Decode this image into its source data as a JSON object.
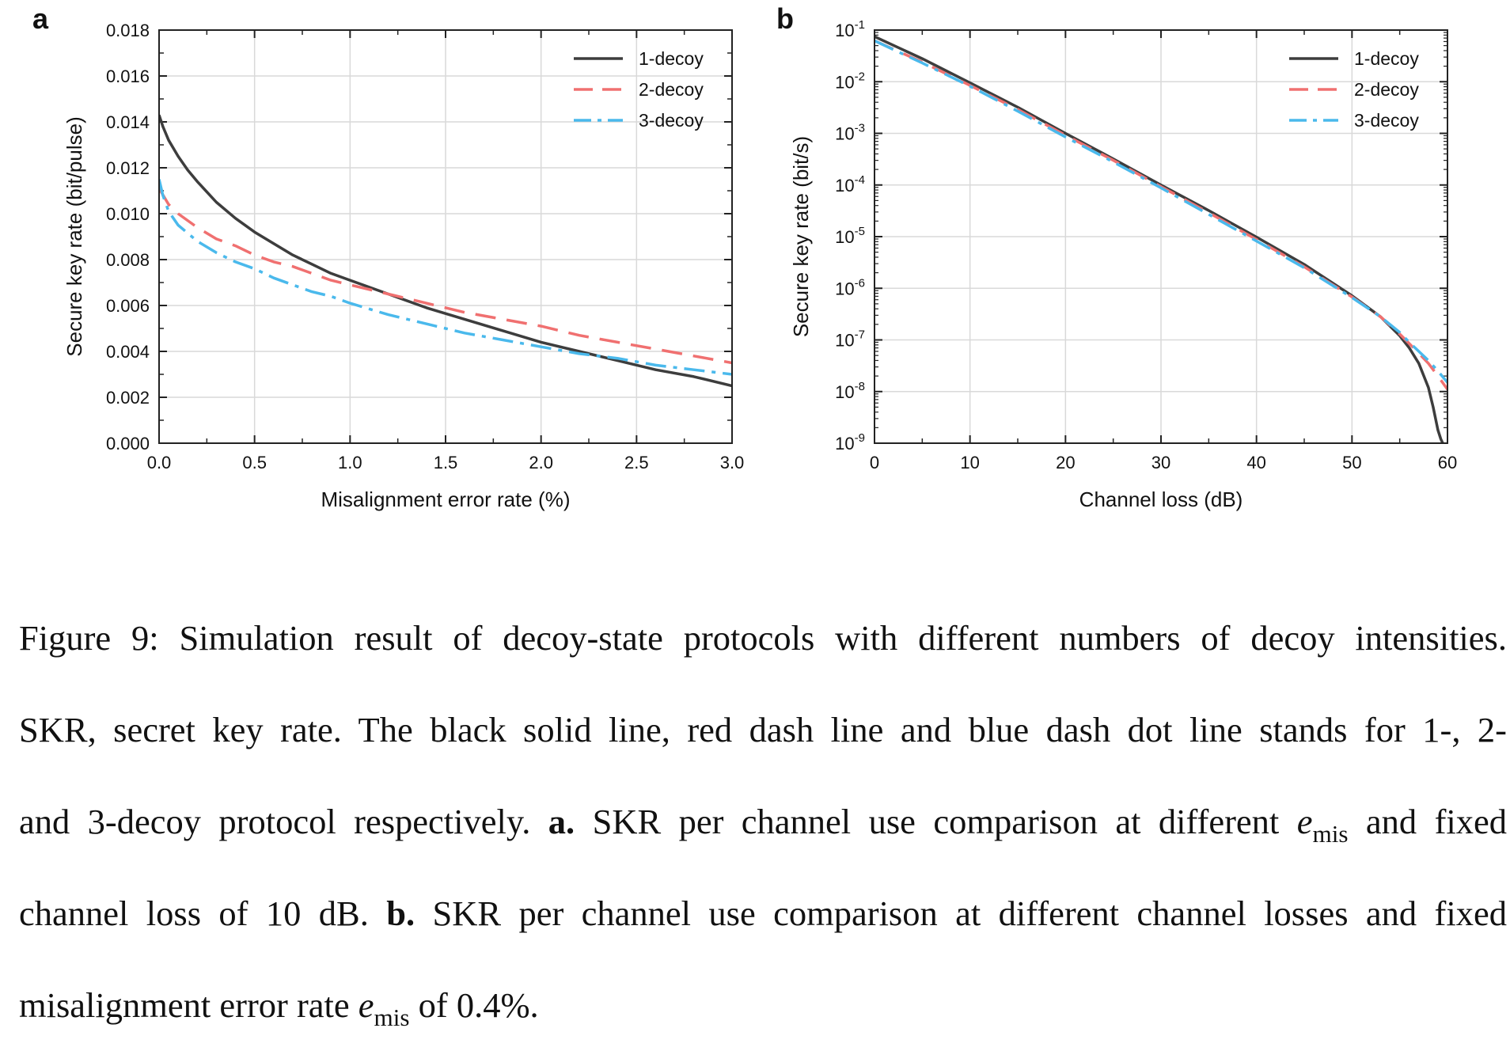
{
  "chart_data": [
    {
      "panel_label": "a",
      "type": "line",
      "xlabel": "Misalignment error rate (%)",
      "ylabel": "Secure key rate (bit/pulse)",
      "xlim": [
        0.0,
        3.0
      ],
      "ylim": [
        0.0,
        0.018
      ],
      "yscale": "linear",
      "x_ticks": [
        0.0,
        0.5,
        1.0,
        1.5,
        2.0,
        2.5,
        3.0
      ],
      "x_tick_labels": [
        "0.0",
        "0.5",
        "1.0",
        "1.5",
        "2.0",
        "2.5",
        "3.0"
      ],
      "y_ticks": [
        0.0,
        0.002,
        0.004,
        0.006,
        0.008,
        0.01,
        0.012,
        0.014,
        0.016,
        0.018
      ],
      "y_tick_labels": [
        "0.000",
        "0.002",
        "0.004",
        "0.006",
        "0.008",
        "0.010",
        "0.012",
        "0.014",
        "0.016",
        "0.018"
      ],
      "grid": true,
      "legend_position": "top-right",
      "series": [
        {
          "name": "1-decoy",
          "color": "#3d3d3d",
          "style": "solid",
          "x": [
            0.0,
            0.02,
            0.05,
            0.1,
            0.15,
            0.2,
            0.3,
            0.4,
            0.5,
            0.6,
            0.7,
            0.8,
            0.9,
            1.0,
            1.2,
            1.4,
            1.6,
            1.8,
            2.0,
            2.2,
            2.4,
            2.6,
            2.8,
            3.0
          ],
          "y": [
            0.0143,
            0.0138,
            0.0132,
            0.0125,
            0.0119,
            0.0114,
            0.0105,
            0.0098,
            0.0092,
            0.0087,
            0.0082,
            0.0078,
            0.0074,
            0.0071,
            0.0065,
            0.0059,
            0.0054,
            0.0049,
            0.0044,
            0.004,
            0.0036,
            0.0032,
            0.0029,
            0.0025
          ]
        },
        {
          "name": "2-decoy",
          "color": "#f07070",
          "style": "dash",
          "x": [
            0.0,
            0.05,
            0.1,
            0.2,
            0.3,
            0.4,
            0.5,
            0.6,
            0.7,
            0.8,
            0.9,
            1.0,
            1.2,
            1.4,
            1.6,
            1.8,
            2.0,
            2.2,
            2.4,
            2.6,
            2.8,
            3.0
          ],
          "y": [
            0.0111,
            0.0104,
            0.01,
            0.0094,
            0.0089,
            0.0086,
            0.0082,
            0.0079,
            0.0077,
            0.0074,
            0.0071,
            0.0069,
            0.0065,
            0.0061,
            0.0057,
            0.0054,
            0.0051,
            0.0047,
            0.0044,
            0.0041,
            0.0038,
            0.0035
          ]
        },
        {
          "name": "3-decoy",
          "color": "#4ab9ec",
          "style": "dashdot",
          "x": [
            0.0,
            0.02,
            0.05,
            0.1,
            0.2,
            0.3,
            0.4,
            0.5,
            0.6,
            0.7,
            0.8,
            0.9,
            1.0,
            1.2,
            1.4,
            1.6,
            1.8,
            2.0,
            2.2,
            2.4,
            2.6,
            2.8,
            3.0
          ],
          "y": [
            0.0115,
            0.0108,
            0.0101,
            0.0095,
            0.0088,
            0.0083,
            0.0079,
            0.0076,
            0.0072,
            0.0069,
            0.0066,
            0.0064,
            0.0061,
            0.0056,
            0.0052,
            0.0048,
            0.0045,
            0.0042,
            0.0039,
            0.0037,
            0.0034,
            0.0032,
            0.003
          ]
        }
      ]
    },
    {
      "panel_label": "b",
      "type": "line",
      "xlabel": "Channel loss (dB)",
      "ylabel": "Secure key rate (bit/s)",
      "xlim": [
        0,
        60
      ],
      "ylim": [
        1e-09,
        0.1
      ],
      "yscale": "log",
      "x_ticks": [
        0,
        10,
        20,
        30,
        40,
        50,
        60
      ],
      "x_tick_labels": [
        "0",
        "10",
        "20",
        "30",
        "40",
        "50",
        "60"
      ],
      "y_ticks": [
        1e-09,
        1e-08,
        1e-07,
        1e-06,
        1e-05,
        0.0001,
        0.001,
        0.01,
        0.1
      ],
      "y_tick_base": "10",
      "y_tick_exponents": [
        "-9",
        "-8",
        "-7",
        "-6",
        "-5",
        "-4",
        "-3",
        "-2",
        "-1"
      ],
      "grid": true,
      "legend_position": "top-right",
      "series": [
        {
          "name": "1-decoy",
          "color": "#3d3d3d",
          "style": "solid",
          "x": [
            0,
            5,
            10,
            15,
            20,
            25,
            30,
            35,
            40,
            45,
            50,
            53,
            55,
            56,
            57,
            58,
            58.5,
            59,
            59.3,
            59.5
          ],
          "y": [
            0.075,
            0.028,
            0.0095,
            0.0032,
            0.001,
            0.00032,
            0.0001,
            3.2e-05,
            9.8e-06,
            2.9e-06,
            7.2e-07,
            2.8e-07,
            1.2e-07,
            7e-08,
            3.5e-08,
            1.2e-08,
            5e-09,
            1.8e-09,
            1.2e-09,
            1e-09
          ]
        },
        {
          "name": "2-decoy",
          "color": "#f07070",
          "style": "dash",
          "x": [
            0,
            5,
            10,
            15,
            20,
            25,
            30,
            35,
            40,
            45,
            50,
            53,
            55,
            56,
            57,
            58,
            59,
            60
          ],
          "y": [
            0.062,
            0.024,
            0.0085,
            0.0029,
            0.00092,
            0.0003,
            9.3e-05,
            2.9e-05,
            8.8e-06,
            2.6e-06,
            6.8e-07,
            2.8e-07,
            1.3e-07,
            8.5e-08,
            5.5e-08,
            3.5e-08,
            2e-08,
            1.1e-08
          ]
        },
        {
          "name": "3-decoy",
          "color": "#4ab9ec",
          "style": "dashdot",
          "x": [
            0,
            5,
            10,
            15,
            20,
            25,
            30,
            35,
            40,
            45,
            50,
            53,
            55,
            56,
            57,
            58,
            59,
            60
          ],
          "y": [
            0.062,
            0.023,
            0.0082,
            0.0027,
            0.00085,
            0.00028,
            8.8e-05,
            2.7e-05,
            8.2e-06,
            2.5e-06,
            6.6e-07,
            2.8e-07,
            1.4e-07,
            9e-08,
            6e-08,
            4e-08,
            2.5e-08,
            1.5e-08
          ]
        }
      ]
    }
  ],
  "caption": {
    "lines": [
      [
        {
          "t": "Figure 9: Simulation result of decoy-state protocols with different numbers of decoy intensities."
        }
      ],
      [
        {
          "t": "SKR, secret key rate.  The black solid line, red dash line and blue dash dot line stands for 1-, 2-"
        }
      ],
      [
        {
          "t": "and 3-decoy protocol respectively. "
        },
        {
          "t": "a.",
          "b": true
        },
        {
          "t": " SKR per channel use comparison at different "
        },
        {
          "m": "e",
          "sub": "mis"
        },
        {
          "t": " and fixed"
        }
      ],
      [
        {
          "t": "channel loss of 10 dB. "
        },
        {
          "t": "b.",
          "b": true
        },
        {
          "t": " SKR per channel use comparison at different channel losses and fixed"
        }
      ],
      [
        {
          "t": "misalignment error rate "
        },
        {
          "m": "e",
          "sub": "mis"
        },
        {
          "t": " of 0.4%."
        }
      ]
    ]
  }
}
